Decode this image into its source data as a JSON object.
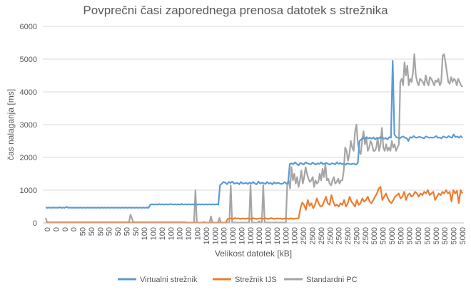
{
  "chart_data": {
    "type": "line",
    "title": "Povprečni časi zaporednega prenosa datotek s strežnika",
    "xlabel": "Velikost datotek [kB]",
    "ylabel": "čas nalaganja [ms]",
    "ylim": [
      0,
      6000
    ],
    "yticks": [
      "0",
      "1000",
      "2000",
      "3000",
      "4000",
      "5000",
      "6000"
    ],
    "grid": true,
    "legend": "bottom",
    "x_tick_labels": [
      "0",
      "0",
      "0",
      "0",
      "50",
      "50",
      "50",
      "50",
      "50",
      "50",
      "50",
      "100",
      "100",
      "100",
      "100",
      "100",
      "100",
      "100",
      "1000",
      "1000",
      "1000",
      "1000",
      "1000",
      "1000",
      "1000",
      "1000",
      "1000",
      "1000",
      "1000",
      "2500",
      "2500",
      "2500",
      "2500",
      "2500",
      "2500",
      "2500",
      "2500",
      "5000",
      "5000",
      "5000",
      "5000",
      "5000",
      "5000",
      "5000",
      "5000",
      "5000",
      "5000",
      "5000"
    ],
    "colors": {
      "Virtualni strežnik": "#5b9bd5",
      "Strežnik IJS": "#ed7d31",
      "Standardni PC": "#a5a5a5"
    },
    "series": [
      {
        "name": "Virtualni strežnik",
        "values": [
          470,
          460,
          470,
          460,
          470,
          465,
          470,
          460,
          480,
          460,
          470,
          460,
          490,
          460,
          470,
          460,
          470,
          460,
          470,
          460,
          470,
          460,
          470,
          460,
          470,
          460,
          470,
          460,
          470,
          460,
          470,
          460,
          470,
          460,
          470,
          460,
          470,
          460,
          470,
          460,
          470,
          460,
          470,
          460,
          470,
          460,
          470,
          460,
          470,
          460,
          470,
          460,
          470,
          460,
          470,
          460,
          470,
          460,
          470,
          460,
          560,
          570,
          560,
          570,
          560,
          575,
          560,
          570,
          560,
          570,
          560,
          570,
          575,
          560,
          570,
          560,
          570,
          560,
          580,
          560,
          570,
          560,
          570,
          560,
          570,
          560,
          570,
          560,
          570,
          560,
          570,
          560,
          570,
          560,
          570,
          560,
          570,
          560,
          570,
          560,
          1150,
          1200,
          1250,
          1230,
          1180,
          1250,
          1220,
          1260,
          1200,
          1210,
          1220,
          1180,
          1250,
          1200,
          1210,
          1220,
          1190,
          1230,
          1200,
          1250,
          1200,
          1180,
          1260,
          1200,
          1230,
          1210,
          1190,
          1250,
          1200,
          1220,
          1180,
          1240,
          1200,
          1230,
          1210,
          1190,
          1200,
          1250,
          1200,
          1210,
          1800,
          1820,
          1790,
          1850,
          1800,
          1760,
          1830,
          1810,
          1780,
          1850,
          1820,
          1800,
          1790,
          1840,
          1810,
          1780,
          1820,
          1800,
          1850,
          1790,
          1810,
          1830,
          1800,
          1780,
          1820,
          1810,
          1790,
          1850,
          1800,
          1830,
          1790,
          1810,
          1780,
          1820,
          1800,
          1790,
          1810,
          1800,
          1780,
          1830,
          2500,
          2550,
          2600,
          2560,
          2620,
          2580,
          2600,
          2570,
          2610,
          2550,
          2600,
          2580,
          2620,
          2600,
          2570,
          2590,
          2550,
          2620,
          2600,
          4950,
          2700,
          2620,
          2600,
          2580,
          2620,
          2640,
          2600,
          2590,
          2500,
          2620,
          2600,
          2650,
          2610,
          2600,
          2630,
          2620,
          2600,
          2580,
          2640,
          2620,
          2600,
          2610,
          2600,
          2620,
          2650,
          2600,
          2610,
          2580,
          2640,
          2620,
          2600,
          2650,
          2620,
          2600,
          2700,
          2620,
          2640,
          2600,
          2650,
          2600
        ]
      },
      {
        "name": "Strežnik IJS",
        "values": [
          10,
          10,
          10,
          10,
          10,
          10,
          10,
          10,
          10,
          10,
          10,
          10,
          10,
          10,
          10,
          10,
          10,
          10,
          10,
          10,
          10,
          10,
          10,
          10,
          10,
          10,
          10,
          10,
          10,
          10,
          10,
          10,
          10,
          10,
          10,
          10,
          10,
          10,
          10,
          10,
          10,
          10,
          10,
          10,
          10,
          10,
          10,
          10,
          10,
          10,
          10,
          10,
          10,
          10,
          10,
          10,
          10,
          10,
          10,
          10,
          10,
          10,
          10,
          10,
          10,
          10,
          10,
          10,
          10,
          10,
          10,
          10,
          10,
          10,
          10,
          10,
          10,
          10,
          10,
          10,
          10,
          10,
          10,
          10,
          10,
          10,
          10,
          10,
          10,
          10,
          10,
          10,
          10,
          10,
          10,
          10,
          10,
          10,
          10,
          10,
          120,
          130,
          140,
          120,
          150,
          130,
          140,
          120,
          135,
          130,
          125,
          140,
          130,
          120,
          145,
          130,
          120,
          135,
          140,
          125,
          130,
          140,
          120,
          130,
          150,
          130,
          120,
          140,
          130,
          135,
          120,
          130,
          140,
          125,
          130,
          140,
          120,
          130,
          135,
          140,
          450,
          620,
          550,
          400,
          700,
          520,
          600,
          450,
          550,
          750,
          600,
          500,
          520,
          650,
          800,
          600,
          550,
          850,
          650,
          520,
          560,
          500,
          600,
          550,
          700,
          500,
          600,
          800,
          650,
          580,
          500,
          700,
          550,
          600,
          750,
          650,
          700,
          800,
          650,
          600,
          700,
          800,
          900,
          1050,
          1100,
          700,
          800,
          900,
          750,
          650,
          600,
          700,
          800,
          850,
          900,
          750,
          800,
          950,
          700,
          850,
          900,
          800,
          850,
          950,
          900,
          800,
          900,
          850,
          950,
          900,
          1000,
          850,
          900,
          950,
          700,
          800,
          900,
          850,
          950,
          900,
          1000,
          900,
          950,
          650,
          1000,
          900,
          980,
          600,
          1000,
          900
        ]
      },
      {
        "name": "Standardni PC",
        "values": [
          150,
          20,
          20,
          20,
          20,
          20,
          20,
          20,
          20,
          20,
          20,
          20,
          20,
          20,
          20,
          20,
          20,
          20,
          20,
          20,
          20,
          20,
          20,
          20,
          20,
          20,
          20,
          20,
          20,
          20,
          20,
          20,
          20,
          20,
          20,
          20,
          20,
          20,
          20,
          20,
          20,
          20,
          20,
          20,
          20,
          20,
          20,
          20,
          20,
          20,
          20,
          20,
          20,
          20,
          20,
          20,
          20,
          20,
          20,
          20,
          250,
          150,
          20,
          20,
          20,
          20,
          20,
          20,
          20,
          20,
          20,
          20,
          20,
          20,
          20,
          20,
          20,
          20,
          20,
          20,
          20,
          20,
          20,
          20,
          20,
          20,
          20,
          20,
          20,
          20,
          20,
          20,
          20,
          20,
          20,
          20,
          20,
          20,
          20,
          20,
          10,
          10,
          10,
          10,
          10,
          10,
          1000,
          30,
          10,
          10,
          10,
          10,
          30,
          10,
          10,
          10,
          10,
          200,
          10,
          10,
          10,
          10,
          10,
          150,
          10,
          10,
          10,
          10,
          10,
          10,
          10,
          1150,
          10,
          10,
          10,
          10,
          10,
          10,
          10,
          10,
          10,
          10,
          10,
          10,
          10,
          1150,
          10,
          10,
          10,
          10,
          10,
          50,
          10,
          10,
          1150,
          20,
          10,
          10,
          10,
          10,
          10,
          10,
          10,
          20,
          10,
          10,
          10,
          10,
          10,
          10,
          10,
          1200,
          1300,
          1050,
          1700,
          1300,
          1500,
          1200,
          1400,
          1100,
          1300,
          1600,
          1200,
          1400,
          1700,
          1500,
          1350,
          1250,
          1300,
          1400,
          1100,
          1300,
          1200,
          1250,
          1500,
          1300,
          1650,
          1400,
          1800,
          1300,
          1350,
          1200,
          1150,
          1300,
          1400,
          1200,
          1250,
          1350,
          1200,
          1300,
          1300,
          1600,
          2300,
          2200,
          1900,
          2100,
          2500,
          2300,
          2200,
          2800,
          3000,
          2400,
          2200,
          2100,
          2500,
          2800,
          2400,
          2600,
          2200,
          2300,
          2500,
          2400,
          2200,
          2200,
          2300,
          2600,
          2200,
          2400,
          2900,
          2300,
          2200,
          2400,
          2200,
          2300,
          2200,
          2500,
          2300,
          2400,
          2200,
          2300,
          2400,
          4300,
          4400,
          4200,
          4900,
          4500,
          4800,
          4200,
          4400,
          4300,
          4600,
          5150,
          4500,
          4300,
          4200,
          4400,
          4350,
          4300,
          4200,
          4500,
          4300,
          4200,
          4450,
          4400,
          4300,
          4200,
          4350,
          4300,
          4400,
          4200,
          4300,
          5100,
          5150,
          4900,
          4600,
          4300,
          4250,
          4450,
          4300,
          4400,
          4350,
          4200,
          4400,
          4300,
          4200,
          4150
        ]
      }
    ]
  }
}
